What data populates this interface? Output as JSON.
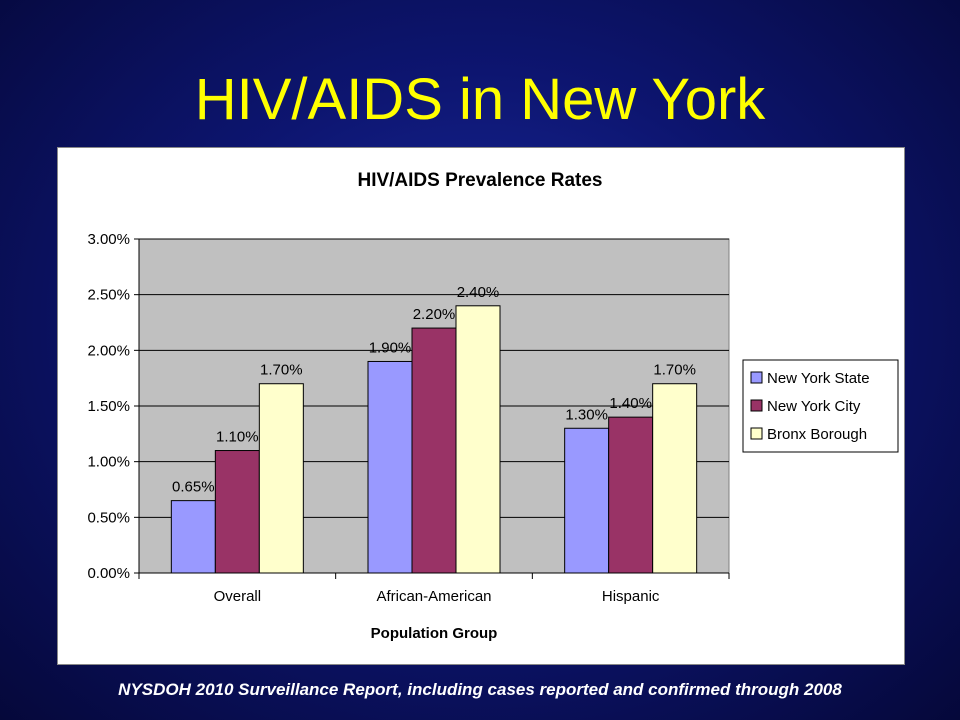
{
  "slide": {
    "title": "HIV/AIDS in New York",
    "footer": "NYSDOH 2010 Surveillance Report, including cases reported and confirmed through 2008"
  },
  "chart_data": {
    "type": "bar",
    "title": "HIV/AIDS Prevalence Rates",
    "xlabel": "Population Group",
    "ylabel": "",
    "categories": [
      "Overall",
      "African-American",
      "Hispanic"
    ],
    "series": [
      {
        "name": "New York State",
        "values": [
          0.65,
          1.9,
          1.3
        ],
        "labels": [
          "0.65%",
          "1.90%",
          "1.30%"
        ],
        "color": "#9999ff"
      },
      {
        "name": "New York City",
        "values": [
          1.1,
          2.2,
          1.4
        ],
        "labels": [
          "1.10%",
          "2.20%",
          "1.40%"
        ],
        "color": "#993366"
      },
      {
        "name": "Bronx Borough",
        "values": [
          1.7,
          2.4,
          1.7
        ],
        "labels": [
          "1.70%",
          "2.40%",
          "1.70%"
        ],
        "color": "#ffffcc"
      }
    ],
    "ylim": [
      0,
      3
    ],
    "yticks": [
      0,
      0.5,
      1,
      1.5,
      2,
      2.5,
      3
    ],
    "ytick_labels": [
      "0.00%",
      "0.50%",
      "1.00%",
      "1.50%",
      "2.00%",
      "2.50%",
      "3.00%"
    ],
    "grid": true,
    "plot_background": "#c0c0c0",
    "legend_position": "right"
  }
}
